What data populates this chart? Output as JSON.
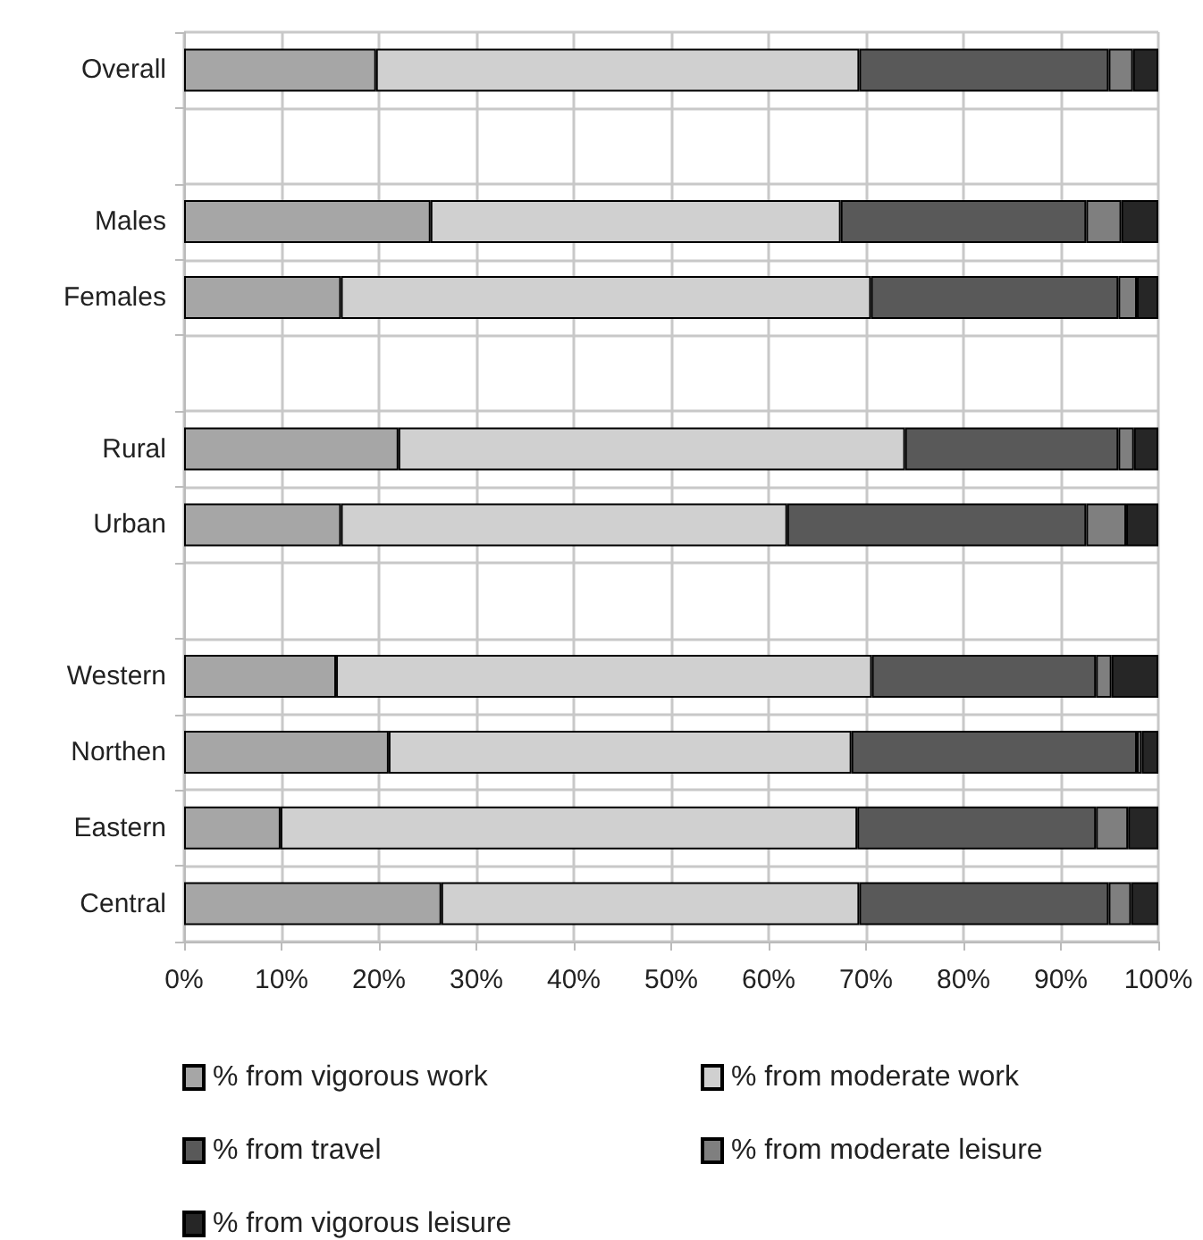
{
  "chart_data": {
    "type": "bar",
    "orientation": "horizontal",
    "stacked": true,
    "grid": true,
    "legend": "bottom",
    "categories": [
      "Overall",
      null,
      "Males",
      "Females",
      null,
      "Rural",
      "Urban",
      null,
      "Western",
      "Northen",
      "Eastern",
      "Central"
    ],
    "series": [
      {
        "name": "% from vigorous work",
        "color": "#a6a6a6",
        "values": [
          19.7,
          null,
          25.3,
          16.1,
          null,
          22.0,
          16.1,
          null,
          15.6,
          21.0,
          9.9,
          26.4
        ]
      },
      {
        "name": "% from moderate work",
        "color": "#d0d0d0",
        "values": [
          49.6,
          null,
          42.1,
          54.4,
          null,
          52.0,
          45.8,
          null,
          55.0,
          47.5,
          59.2,
          42.9
        ]
      },
      {
        "name": "% from travel",
        "color": "#595959",
        "values": [
          25.6,
          null,
          25.2,
          25.4,
          null,
          21.9,
          30.7,
          null,
          23.0,
          29.3,
          24.5,
          25.6
        ]
      },
      {
        "name": "% from moderate leisure",
        "color": "#7f7f7f",
        "values": [
          2.5,
          null,
          3.6,
          1.9,
          null,
          1.6,
          4.1,
          null,
          1.6,
          0.5,
          3.3,
          2.3
        ]
      },
      {
        "name": "% from vigorous leisure",
        "color": "#262626",
        "values": [
          2.6,
          null,
          3.8,
          2.2,
          null,
          2.5,
          3.3,
          null,
          4.8,
          1.7,
          3.1,
          2.8
        ]
      }
    ],
    "xlim": [
      0,
      100
    ],
    "xticks": [
      {
        "value": 0,
        "label": "0%"
      },
      {
        "value": 10,
        "label": "10%"
      },
      {
        "value": 20,
        "label": "20%"
      },
      {
        "value": 30,
        "label": "30%"
      },
      {
        "value": 40,
        "label": "40%"
      },
      {
        "value": 50,
        "label": "50%"
      },
      {
        "value": 60,
        "label": "60%"
      },
      {
        "value": 70,
        "label": "70%"
      },
      {
        "value": 80,
        "label": "80%"
      },
      {
        "value": 90,
        "label": "90%"
      },
      {
        "value": 100,
        "label": "100%"
      }
    ]
  }
}
